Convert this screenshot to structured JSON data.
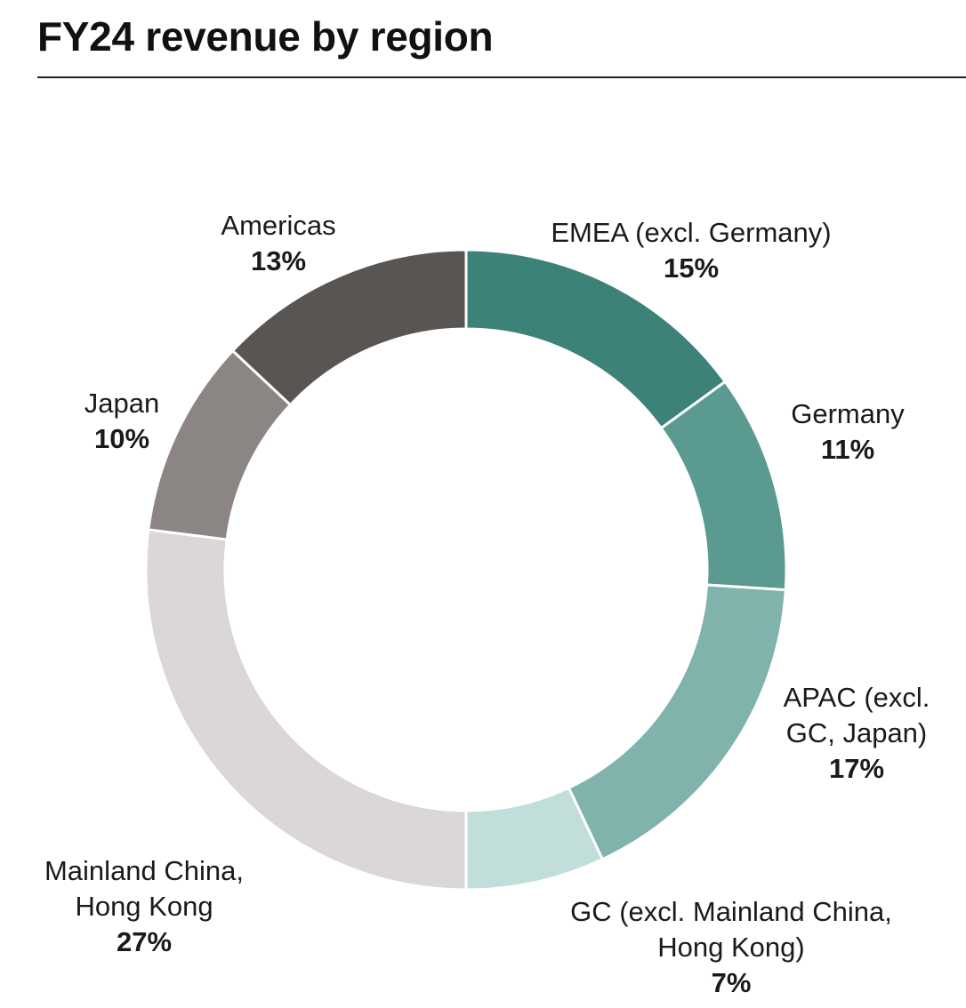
{
  "chart_data": {
    "type": "pie",
    "title": "FY24 revenue by region",
    "slices": [
      {
        "label_lines": [
          "EMEA (excl. Germany)"
        ],
        "value": 15,
        "pct_label": "15%",
        "color": "#3c8278"
      },
      {
        "label_lines": [
          "Germany"
        ],
        "value": 11,
        "pct_label": "11%",
        "color": "#5a9a90"
      },
      {
        "label_lines": [
          "APAC (excl.",
          "GC, Japan)"
        ],
        "value": 17,
        "pct_label": "17%",
        "color": "#80b3ac"
      },
      {
        "label_lines": [
          "GC (excl. Mainland China,",
          "Hong Kong)"
        ],
        "value": 7,
        "pct_label": "7%",
        "color": "#c2dedb"
      },
      {
        "label_lines": [
          "Mainland China,",
          "Hong Kong"
        ],
        "value": 27,
        "pct_label": "27%",
        "color": "#dbd6d7"
      },
      {
        "label_lines": [
          "Japan"
        ],
        "value": 10,
        "pct_label": "10%",
        "color": "#8b8584"
      },
      {
        "label_lines": [
          "Americas"
        ],
        "value": 13,
        "pct_label": "13%",
        "color": "#595553"
      }
    ]
  }
}
